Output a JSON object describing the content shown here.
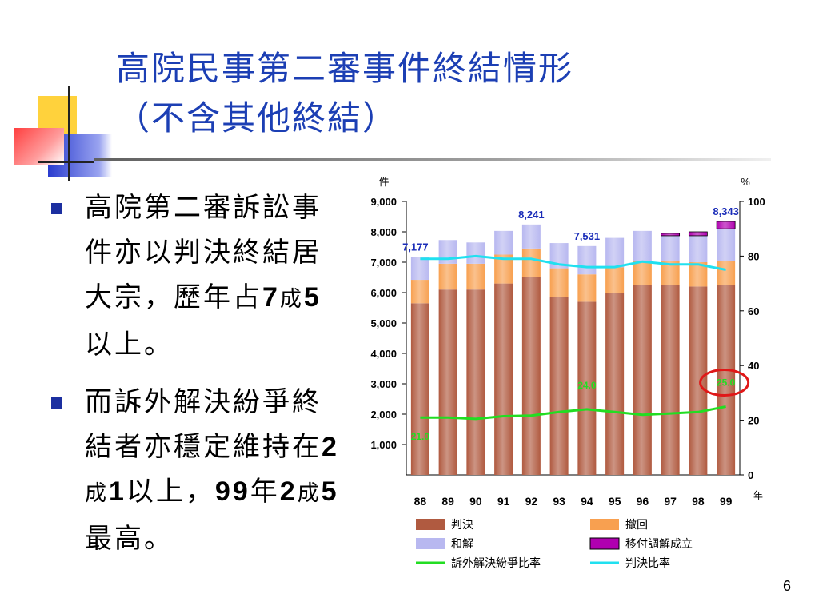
{
  "title": {
    "line1": "高院民事第二審事件終結情形",
    "line2": "（不含其他終結）"
  },
  "bullets": [
    {
      "parts": [
        "高院第二審訴訟事件亦以判決終結居大宗，歷年占",
        "7",
        "成",
        "5",
        "以上。"
      ]
    },
    {
      "parts": [
        "而訴外解決紛爭終結者亦穩定維持在",
        "2",
        "成",
        "1",
        "以上，",
        "99",
        "年",
        "2",
        "成",
        "5",
        "最高。"
      ]
    }
  ],
  "page_number": "6",
  "colors": {
    "title": "#1c3fb4",
    "judgment": "#b05a40",
    "withdraw": "#f8a050",
    "settle": "#b8b8f0",
    "mediation": "#b000b0",
    "ratio_outside": "#22dd22",
    "ratio_judgment": "#20e0f0",
    "label_blue": "#1a2cb8",
    "highlight": "#e01818"
  },
  "chart_data": {
    "type": "bar",
    "stacked": true,
    "left_unit": "件",
    "right_unit": "%",
    "x_unit": "年",
    "categories": [
      "88",
      "89",
      "90",
      "91",
      "92",
      "93",
      "94",
      "95",
      "96",
      "97",
      "98",
      "99"
    ],
    "ylim": [
      0,
      9000
    ],
    "ylim_right": [
      0,
      100
    ],
    "y_ticks": [
      "1,000",
      "2,000",
      "3,000",
      "4,000",
      "5,000",
      "6,000",
      "7,000",
      "8,000",
      "9,000"
    ],
    "y_ticks_right": [
      "0",
      "20",
      "40",
      "60",
      "80",
      "100"
    ],
    "grid": false,
    "legend_position": "bottom",
    "series": [
      {
        "name": "判決",
        "kind": "bar",
        "values": [
          5650,
          6100,
          6100,
          6300,
          6500,
          5850,
          5700,
          5980,
          6250,
          6250,
          6200,
          6250
        ]
      },
      {
        "name": "撤回",
        "kind": "bar",
        "values": [
          770,
          850,
          850,
          950,
          950,
          950,
          900,
          850,
          800,
          800,
          800,
          800
        ]
      },
      {
        "name": "和解",
        "kind": "bar",
        "values": [
          757,
          780,
          700,
          780,
          791,
          830,
          931,
          970,
          980,
          820,
          870,
          1050
        ]
      },
      {
        "name": "移付調解成立",
        "kind": "bar",
        "values": [
          0,
          0,
          0,
          0,
          0,
          0,
          0,
          0,
          0,
          80,
          130,
          243
        ]
      },
      {
        "name": "訴外解決紛爭比率",
        "kind": "line",
        "axis": "right",
        "values": [
          21.0,
          21.0,
          20.5,
          21.5,
          21.7,
          23.0,
          24.0,
          23.0,
          22.0,
          22.5,
          23.0,
          25.0
        ]
      },
      {
        "name": "判決比率",
        "kind": "line",
        "axis": "right",
        "values": [
          79,
          79,
          80,
          79,
          79,
          77,
          76,
          76,
          78,
          77,
          77,
          75
        ]
      }
    ],
    "total_labels": [
      {
        "index": 0,
        "text": "7,177"
      },
      {
        "index": 4,
        "text": "8,241"
      },
      {
        "index": 6,
        "text": "7,531"
      },
      {
        "index": 11,
        "text": "8,343"
      }
    ],
    "ratio_labels": [
      {
        "index": 0,
        "text": "21.0"
      },
      {
        "index": 6,
        "text": "24.0"
      },
      {
        "index": 11,
        "text": "25.0"
      }
    ]
  }
}
